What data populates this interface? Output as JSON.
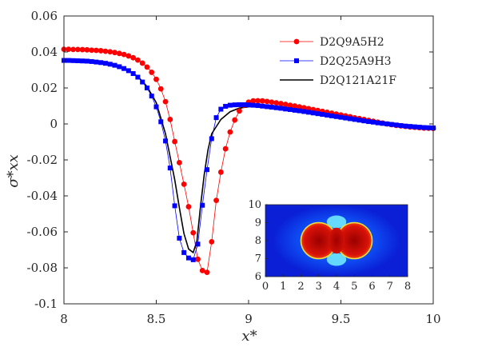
{
  "chart_data": [
    {
      "type": "line",
      "xlabel": "x*",
      "ylabel": "σ*xx",
      "xlim": [
        8,
        10
      ],
      "ylim": [
        -0.1,
        0.06
      ],
      "x_ticks": [
        8,
        8.5,
        9,
        9.5,
        10
      ],
      "y_ticks": [
        -0.1,
        -0.08,
        -0.06,
        -0.04,
        -0.02,
        0,
        0.02,
        0.04,
        0.06
      ],
      "x_tick_labels": [
        "8",
        "8.5",
        "9",
        "9.5",
        "10"
      ],
      "y_tick_labels": [
        "-0.1",
        "-0.08",
        "-0.06",
        "-0.04",
        "-0.02",
        "0",
        "0.02",
        "0.04",
        "0.06"
      ],
      "grid": false,
      "legend_position": "top-right",
      "series": [
        {
          "name": "D2Q9A5H2",
          "color": "#ff0000",
          "marker": "circle",
          "x": [
            8.0,
            8.025,
            8.05,
            8.075,
            8.1,
            8.125,
            8.15,
            8.175,
            8.2,
            8.225,
            8.25,
            8.275,
            8.3,
            8.325,
            8.35,
            8.375,
            8.4,
            8.425,
            8.45,
            8.475,
            8.5,
            8.525,
            8.55,
            8.575,
            8.6,
            8.625,
            8.65,
            8.675,
            8.7,
            8.725,
            8.75,
            8.775,
            8.8,
            8.825,
            8.85,
            8.875,
            8.9,
            8.925,
            8.95,
            8.975,
            9.0,
            9.025,
            9.05,
            9.075,
            9.1,
            9.125,
            9.15,
            9.175,
            9.2,
            9.225,
            9.25,
            9.275,
            9.3,
            9.325,
            9.35,
            9.375,
            9.4,
            9.425,
            9.45,
            9.475,
            9.5,
            9.525,
            9.55,
            9.575,
            9.6,
            9.625,
            9.65,
            9.675,
            9.7,
            9.725,
            9.75,
            9.775,
            9.8,
            9.825,
            9.85,
            9.875,
            9.9,
            9.925,
            9.95,
            9.975,
            10.0
          ],
          "values": [
            0.0415,
            0.0415,
            0.0414,
            0.0414,
            0.0413,
            0.0412,
            0.041,
            0.0409,
            0.0407,
            0.0404,
            0.0401,
            0.0397,
            0.0392,
            0.0386,
            0.0378,
            0.0368,
            0.0355,
            0.0338,
            0.0316,
            0.0287,
            0.0248,
            0.0195,
            0.0124,
            0.0025,
            -0.0098,
            -0.0215,
            -0.0335,
            -0.046,
            -0.0605,
            -0.0752,
            -0.0815,
            -0.0825,
            -0.0655,
            -0.0425,
            -0.0268,
            -0.0138,
            -0.0045,
            0.0022,
            0.0072,
            0.0104,
            0.0121,
            0.0128,
            0.0129,
            0.0128,
            0.0125,
            0.0121,
            0.0117,
            0.0113,
            0.0109,
            0.0104,
            0.01,
            0.0095,
            0.009,
            0.0085,
            0.008,
            0.0075,
            0.007,
            0.0065,
            0.006,
            0.0055,
            0.005,
            0.0045,
            0.004,
            0.0034,
            0.003,
            0.0025,
            0.002,
            0.0015,
            0.001,
            0.0005,
            0.0,
            -0.0004,
            -0.0008,
            -0.0011,
            -0.0014,
            -0.0017,
            -0.0019,
            -0.0021,
            -0.0023,
            -0.0024,
            -0.0025
          ]
        },
        {
          "name": "D2Q25A9H3",
          "color": "#0000ff",
          "marker": "square",
          "x": [
            8.0,
            8.025,
            8.05,
            8.075,
            8.1,
            8.125,
            8.15,
            8.175,
            8.2,
            8.225,
            8.25,
            8.275,
            8.3,
            8.325,
            8.35,
            8.375,
            8.4,
            8.425,
            8.45,
            8.475,
            8.5,
            8.525,
            8.55,
            8.575,
            8.6,
            8.625,
            8.65,
            8.675,
            8.7,
            8.725,
            8.75,
            8.775,
            8.8,
            8.825,
            8.85,
            8.875,
            8.9,
            8.925,
            8.95,
            8.975,
            9.0,
            9.025,
            9.05,
            9.075,
            9.1,
            9.125,
            9.15,
            9.175,
            9.2,
            9.225,
            9.25,
            9.275,
            9.3,
            9.325,
            9.35,
            9.375,
            9.4,
            9.425,
            9.45,
            9.475,
            9.5,
            9.525,
            9.55,
            9.575,
            9.6,
            9.625,
            9.65,
            9.675,
            9.7,
            9.725,
            9.75,
            9.775,
            9.8,
            9.825,
            9.85,
            9.875,
            9.9,
            9.925,
            9.95,
            9.975,
            10.0
          ],
          "values": [
            0.0353,
            0.0353,
            0.0352,
            0.0351,
            0.035,
            0.0349,
            0.0347,
            0.0344,
            0.0341,
            0.0337,
            0.0332,
            0.0326,
            0.0318,
            0.0308,
            0.0296,
            0.028,
            0.026,
            0.0233,
            0.02,
            0.0155,
            0.0095,
            0.0012,
            -0.0095,
            -0.0245,
            -0.0455,
            -0.0635,
            -0.0715,
            -0.0745,
            -0.0755,
            -0.0668,
            -0.0452,
            -0.0254,
            -0.0082,
            0.0035,
            0.0082,
            0.0098,
            0.0104,
            0.0106,
            0.0107,
            0.0107,
            0.0106,
            0.0104,
            0.0102,
            0.0099,
            0.0096,
            0.0093,
            0.009,
            0.0087,
            0.0083,
            0.008,
            0.0076,
            0.0073,
            0.0069,
            0.0065,
            0.0061,
            0.0057,
            0.0053,
            0.0049,
            0.0045,
            0.0041,
            0.0037,
            0.0033,
            0.0029,
            0.0025,
            0.0021,
            0.0017,
            0.0013,
            0.001,
            0.0006,
            0.0003,
            0.0,
            -0.0003,
            -0.0006,
            -0.0009,
            -0.0012,
            -0.0014,
            -0.0016,
            -0.0018,
            -0.002,
            -0.0021,
            -0.0022
          ]
        },
        {
          "name": "D2Q121A21F",
          "color": "#000000",
          "marker": "none",
          "x": [
            8.0,
            8.05,
            8.1,
            8.15,
            8.2,
            8.25,
            8.3,
            8.35,
            8.4,
            8.45,
            8.5,
            8.55,
            8.6,
            8.625,
            8.65,
            8.675,
            8.7,
            8.72,
            8.74,
            8.76,
            8.78,
            8.8,
            8.85,
            8.9,
            8.95,
            9.0,
            9.05,
            9.1,
            9.15,
            9.2,
            9.3,
            9.4,
            9.5,
            9.6,
            9.7,
            9.8,
            9.9,
            10.0
          ],
          "values": [
            0.0353,
            0.0352,
            0.035,
            0.0347,
            0.0342,
            0.0333,
            0.032,
            0.0298,
            0.0264,
            0.0208,
            0.0118,
            -0.0055,
            -0.031,
            -0.0465,
            -0.061,
            -0.0695,
            -0.0715,
            -0.0652,
            -0.0455,
            -0.028,
            -0.0145,
            -0.0055,
            0.0025,
            0.0068,
            0.0088,
            0.0095,
            0.0098,
            0.0098,
            0.0096,
            0.0093,
            0.0079,
            0.0064,
            0.0048,
            0.0032,
            0.0016,
            0.0002,
            -0.0012,
            -0.0022
          ]
        }
      ]
    },
    {
      "type": "heatmap",
      "xlim": [
        0,
        8
      ],
      "ylim": [
        6,
        10
      ],
      "x_ticks": [
        0,
        1,
        2,
        3,
        4,
        5,
        6,
        7,
        8
      ],
      "y_ticks": [
        6,
        7,
        8,
        9,
        10
      ],
      "x_tick_labels": [
        "0",
        "1",
        "2",
        "3",
        "4",
        "5",
        "6",
        "7",
        "8"
      ],
      "y_tick_labels": [
        "6",
        "7",
        "8",
        "9",
        "10"
      ],
      "background_color": "#0a1fd6",
      "droplets": [
        {
          "cx": 3.0,
          "cy": 8.0,
          "r": 1.0
        },
        {
          "cx": 5.0,
          "cy": 8.0,
          "r": 1.0
        }
      ],
      "droplet_color": "#e02010",
      "interface_color": "#f0e040"
    }
  ]
}
